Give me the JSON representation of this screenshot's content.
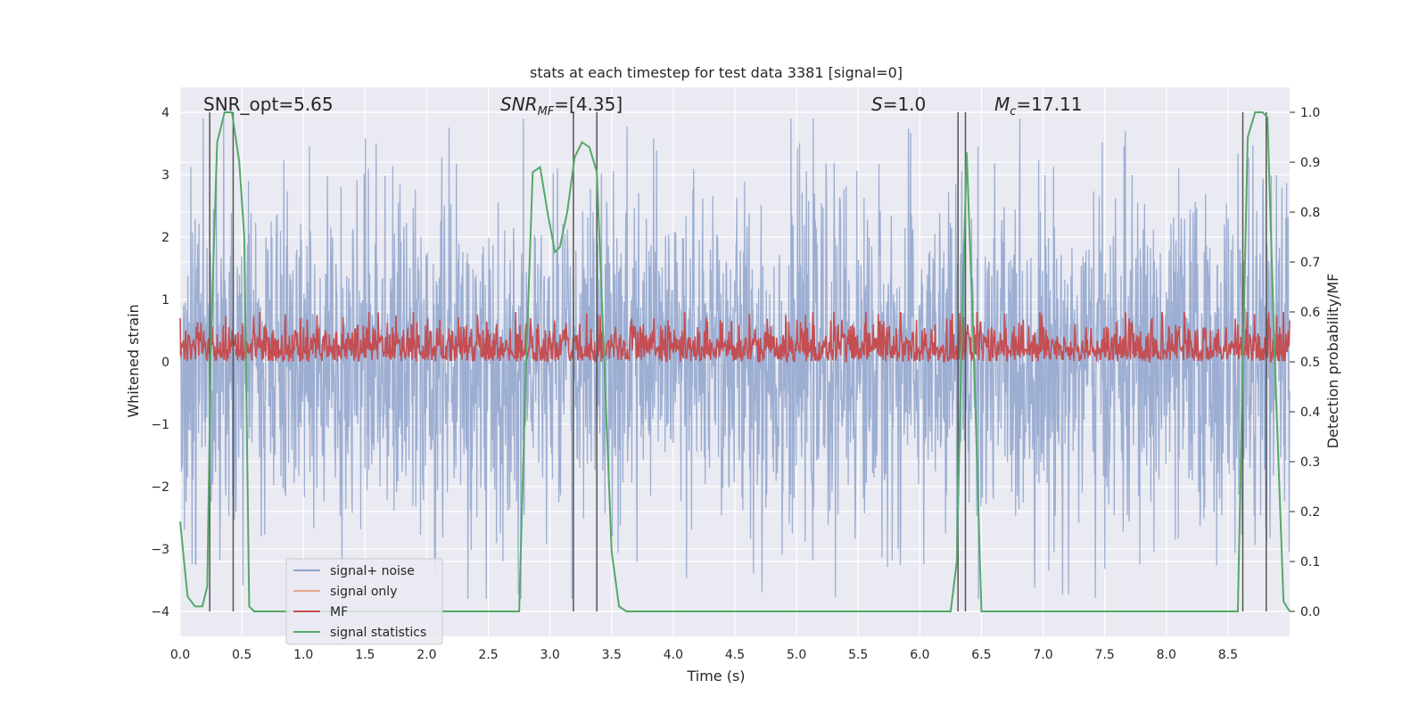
{
  "chart_data": {
    "type": "line",
    "title": "stats at each timestep for test data 3381 [signal=0]",
    "xlabel": "Time (s)",
    "ylabel_left": "Whitened strain",
    "ylabel_right": "Detection probability/MF",
    "xlim": [
      0,
      9.0
    ],
    "ylim_left": [
      -4.4,
      4.4
    ],
    "ylim_right": [
      -0.05,
      1.05
    ],
    "grid": true,
    "legend_position": "lower-left",
    "x_ticks": [
      "0.0",
      "0.5",
      "1.0",
      "1.5",
      "2.0",
      "2.5",
      "3.0",
      "3.5",
      "4.0",
      "4.5",
      "5.0",
      "5.5",
      "6.0",
      "6.5",
      "7.0",
      "7.5",
      "8.0",
      "8.5"
    ],
    "y_left_ticks": [
      "4",
      "3",
      "2",
      "1",
      "0",
      "−1",
      "−2",
      "−3",
      "−4"
    ],
    "y_right_ticks": [
      "1.0",
      "0.9",
      "0.8",
      "0.7",
      "0.6",
      "0.5",
      "0.4",
      "0.3",
      "0.2",
      "0.1",
      "0.0"
    ],
    "annotations": {
      "snr_opt": "SNR_opt=5.65",
      "snr_mf_prefix": "SNR",
      "snr_mf_sub": "MF",
      "snr_mf_value": "=[4.35]",
      "s_prefix": "S",
      "s_value": "=1.0",
      "mc_prefix": "M",
      "mc_sub": "c",
      "mc_value": "=17.11"
    },
    "series": [
      {
        "name": "signal+ noise",
        "color": "#8ea3cc",
        "axis": "left",
        "description_range": [
          -3.6,
          3.9
        ]
      },
      {
        "name": "signal only",
        "color": "#e8a58e",
        "axis": "left",
        "values_flat": 0
      },
      {
        "name": "MF",
        "color": "#c44e52",
        "axis": "right",
        "typical_range": [
          0.5,
          0.58
        ]
      },
      {
        "name": "signal statistics",
        "color": "#55a868",
        "axis": "right",
        "x": [
          0.0,
          0.06,
          0.12,
          0.18,
          0.22,
          0.25,
          0.3,
          0.36,
          0.42,
          0.48,
          0.52,
          0.56,
          0.6,
          0.7,
          2.7,
          2.75,
          2.8,
          2.86,
          2.92,
          2.98,
          3.04,
          3.08,
          3.14,
          3.2,
          3.26,
          3.32,
          3.38,
          3.44,
          3.5,
          3.56,
          3.62,
          6.25,
          6.3,
          6.34,
          6.38,
          6.44,
          6.5,
          8.58,
          8.62,
          8.66,
          8.72,
          8.78,
          8.82,
          8.88,
          8.95,
          9.0
        ],
        "y": [
          0.18,
          0.03,
          0.01,
          0.01,
          0.05,
          0.55,
          0.94,
          1.0,
          1.0,
          0.9,
          0.75,
          0.01,
          0.0,
          0.0,
          0.0,
          0.0,
          0.45,
          0.88,
          0.89,
          0.8,
          0.72,
          0.73,
          0.8,
          0.91,
          0.94,
          0.93,
          0.88,
          0.5,
          0.12,
          0.01,
          0.0,
          0.0,
          0.1,
          0.55,
          0.92,
          0.5,
          0.0,
          0.0,
          0.5,
          0.95,
          1.0,
          1.0,
          0.99,
          0.5,
          0.02,
          0.0
        ]
      }
    ],
    "vertical_markers_x": [
      0.24,
      0.43,
      3.19,
      3.38,
      6.31,
      6.37,
      8.62,
      8.81
    ]
  }
}
